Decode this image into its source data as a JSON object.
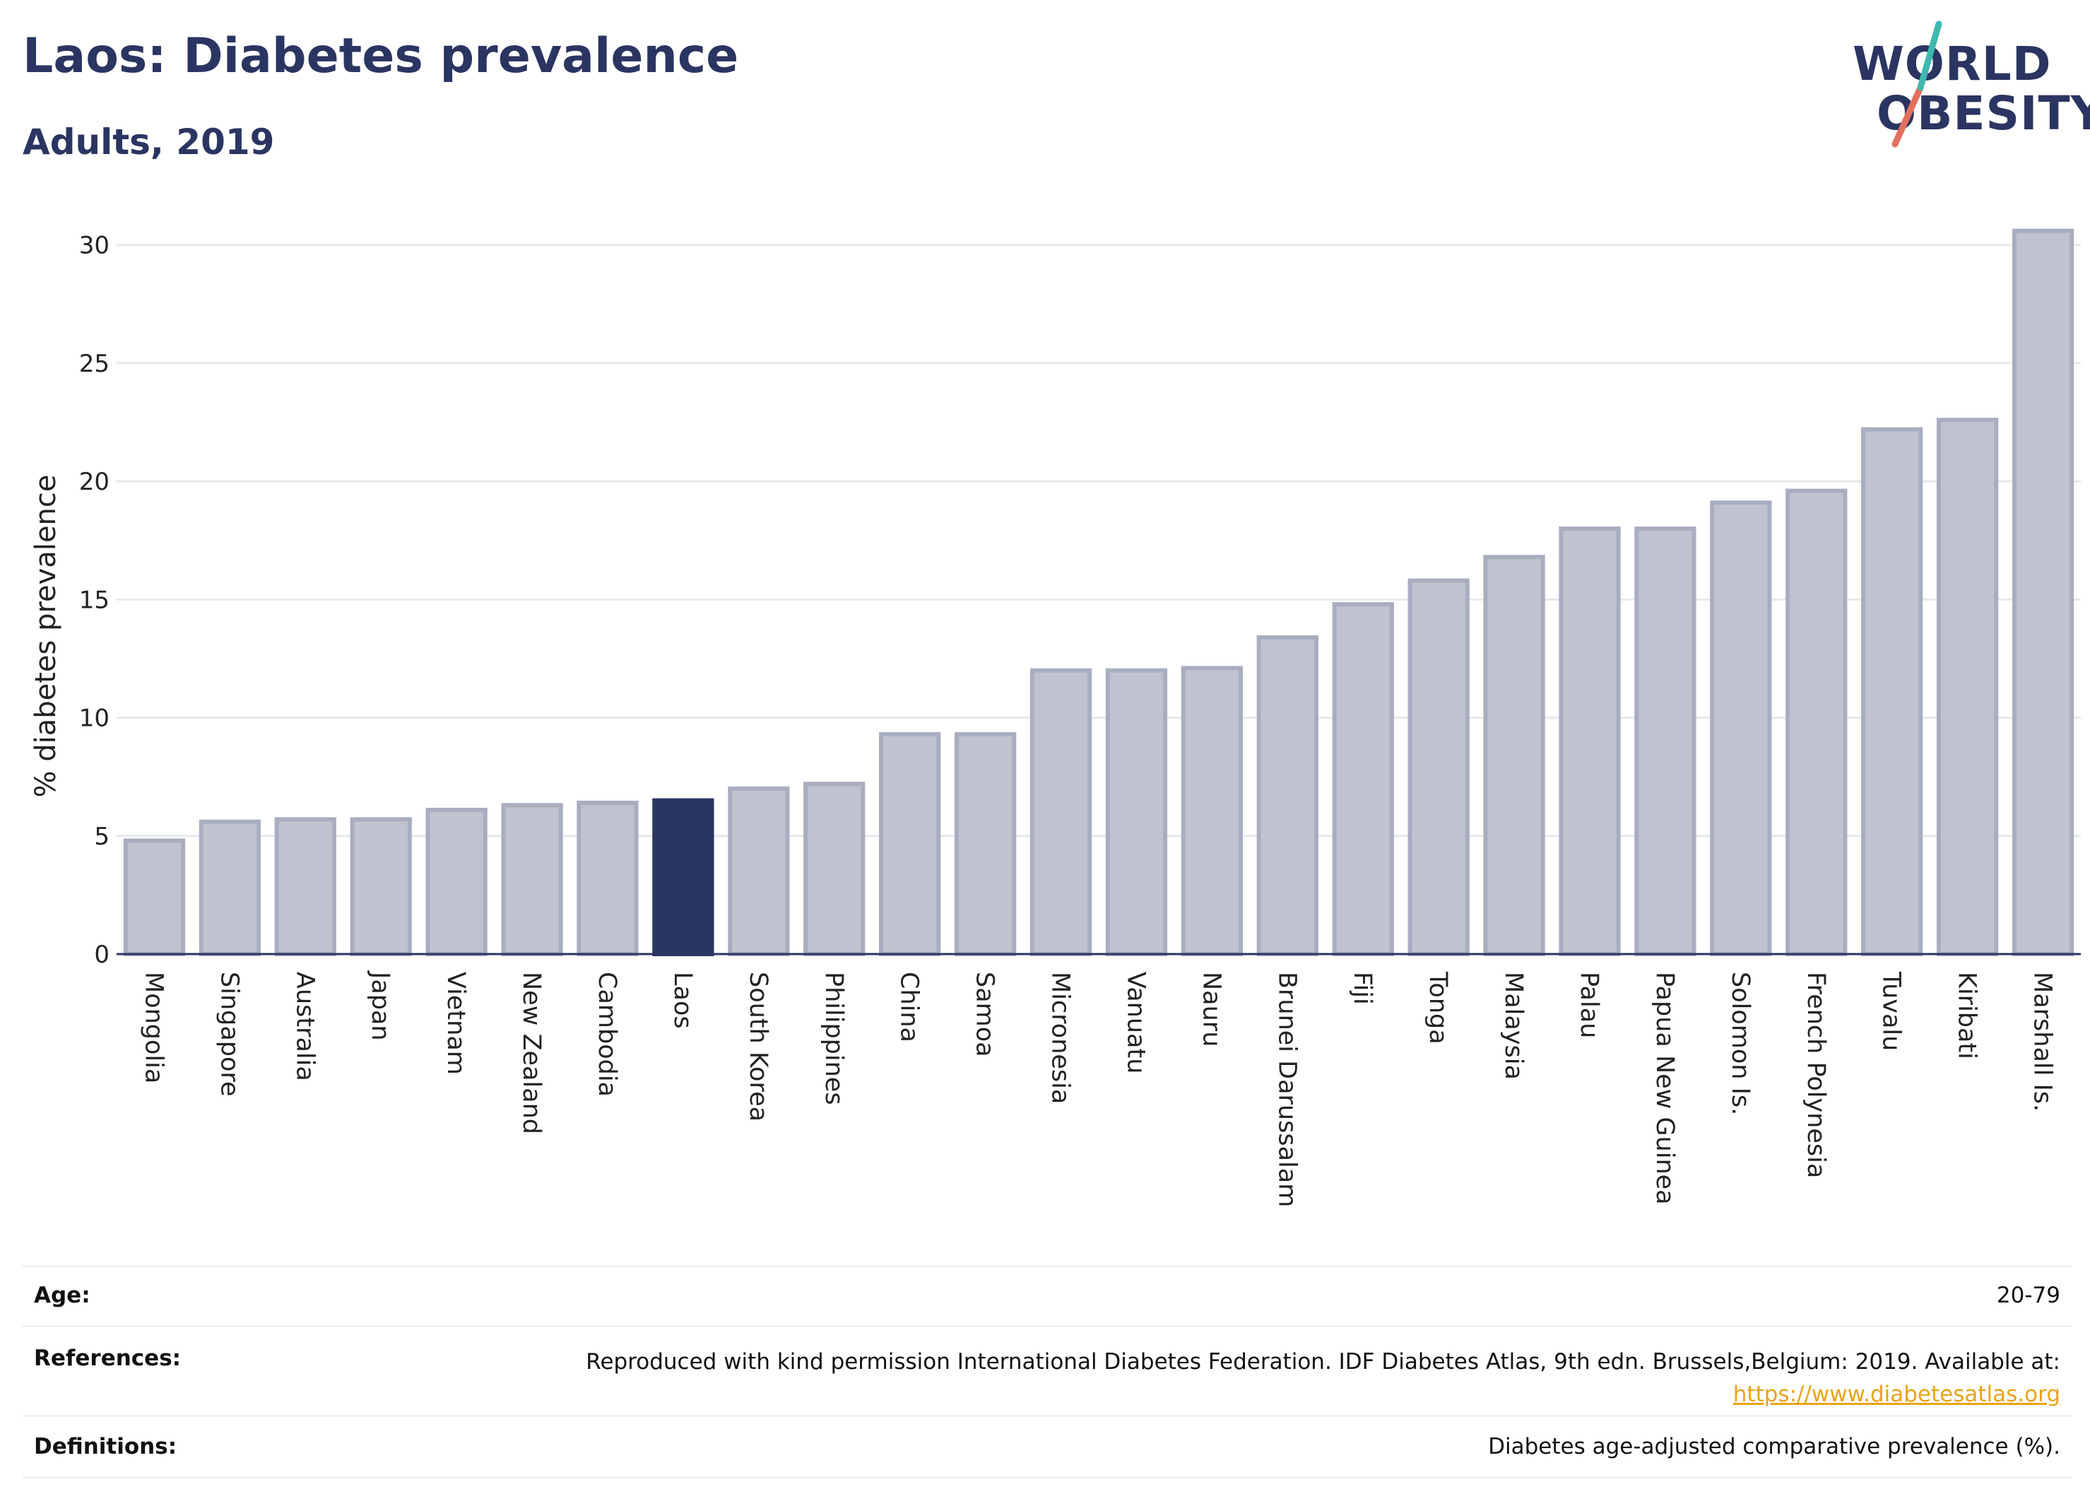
{
  "header": {
    "title": "Laos: Diabetes prevalence",
    "subtitle": "Adults, 2019"
  },
  "logo": {
    "line1": "WORLD",
    "line2": "OBESITY"
  },
  "chart_data": {
    "type": "bar",
    "ylabel": "% diabetes prevalence",
    "ylim": [
      0,
      30.5
    ],
    "yticks": [
      0,
      5,
      10,
      15,
      20,
      25,
      30
    ],
    "grid": true,
    "highlight": "Laos",
    "colors": {
      "bar": "#c0c3cf",
      "bar_edge": "#a9adc0",
      "highlight": "#2b3562",
      "grid": "#e6e8ec",
      "axis": "#2b3562"
    },
    "categories": [
      "Mongolia",
      "Singapore",
      "Australia",
      "Japan",
      "Vietnam",
      "New Zealand",
      "Cambodia",
      "Laos",
      "South Korea",
      "Philippines",
      "China",
      "Samoa",
      "Micronesia",
      "Vanuatu",
      "Nauru",
      "Brunei Darussalam",
      "Fiji",
      "Tonga",
      "Malaysia",
      "Palau",
      "Papua New Guinea",
      "Solomon Is.",
      "French Polynesia",
      "Tuvalu",
      "Kiribati",
      "Marshall Is."
    ],
    "values": [
      4.8,
      5.6,
      5.7,
      5.7,
      6.1,
      6.3,
      6.4,
      6.5,
      7.0,
      7.2,
      9.3,
      9.3,
      12.0,
      12.0,
      12.1,
      13.4,
      14.8,
      15.8,
      16.8,
      18.0,
      18.0,
      19.1,
      19.6,
      22.2,
      22.6,
      30.6
    ]
  },
  "info_table": {
    "age_label": "Age:",
    "age_value": "20-79",
    "references_label": "References:",
    "references_text": "Reproduced with kind permission International Diabetes Federation. IDF Diabetes Atlas, 9th edn. Brussels,Belgium: 2019. Available at:",
    "references_link": "https://www.diabetesatlas.org",
    "definitions_label": "Definitions:",
    "definitions_value": "Diabetes age-adjusted comparative prevalence (%)."
  }
}
